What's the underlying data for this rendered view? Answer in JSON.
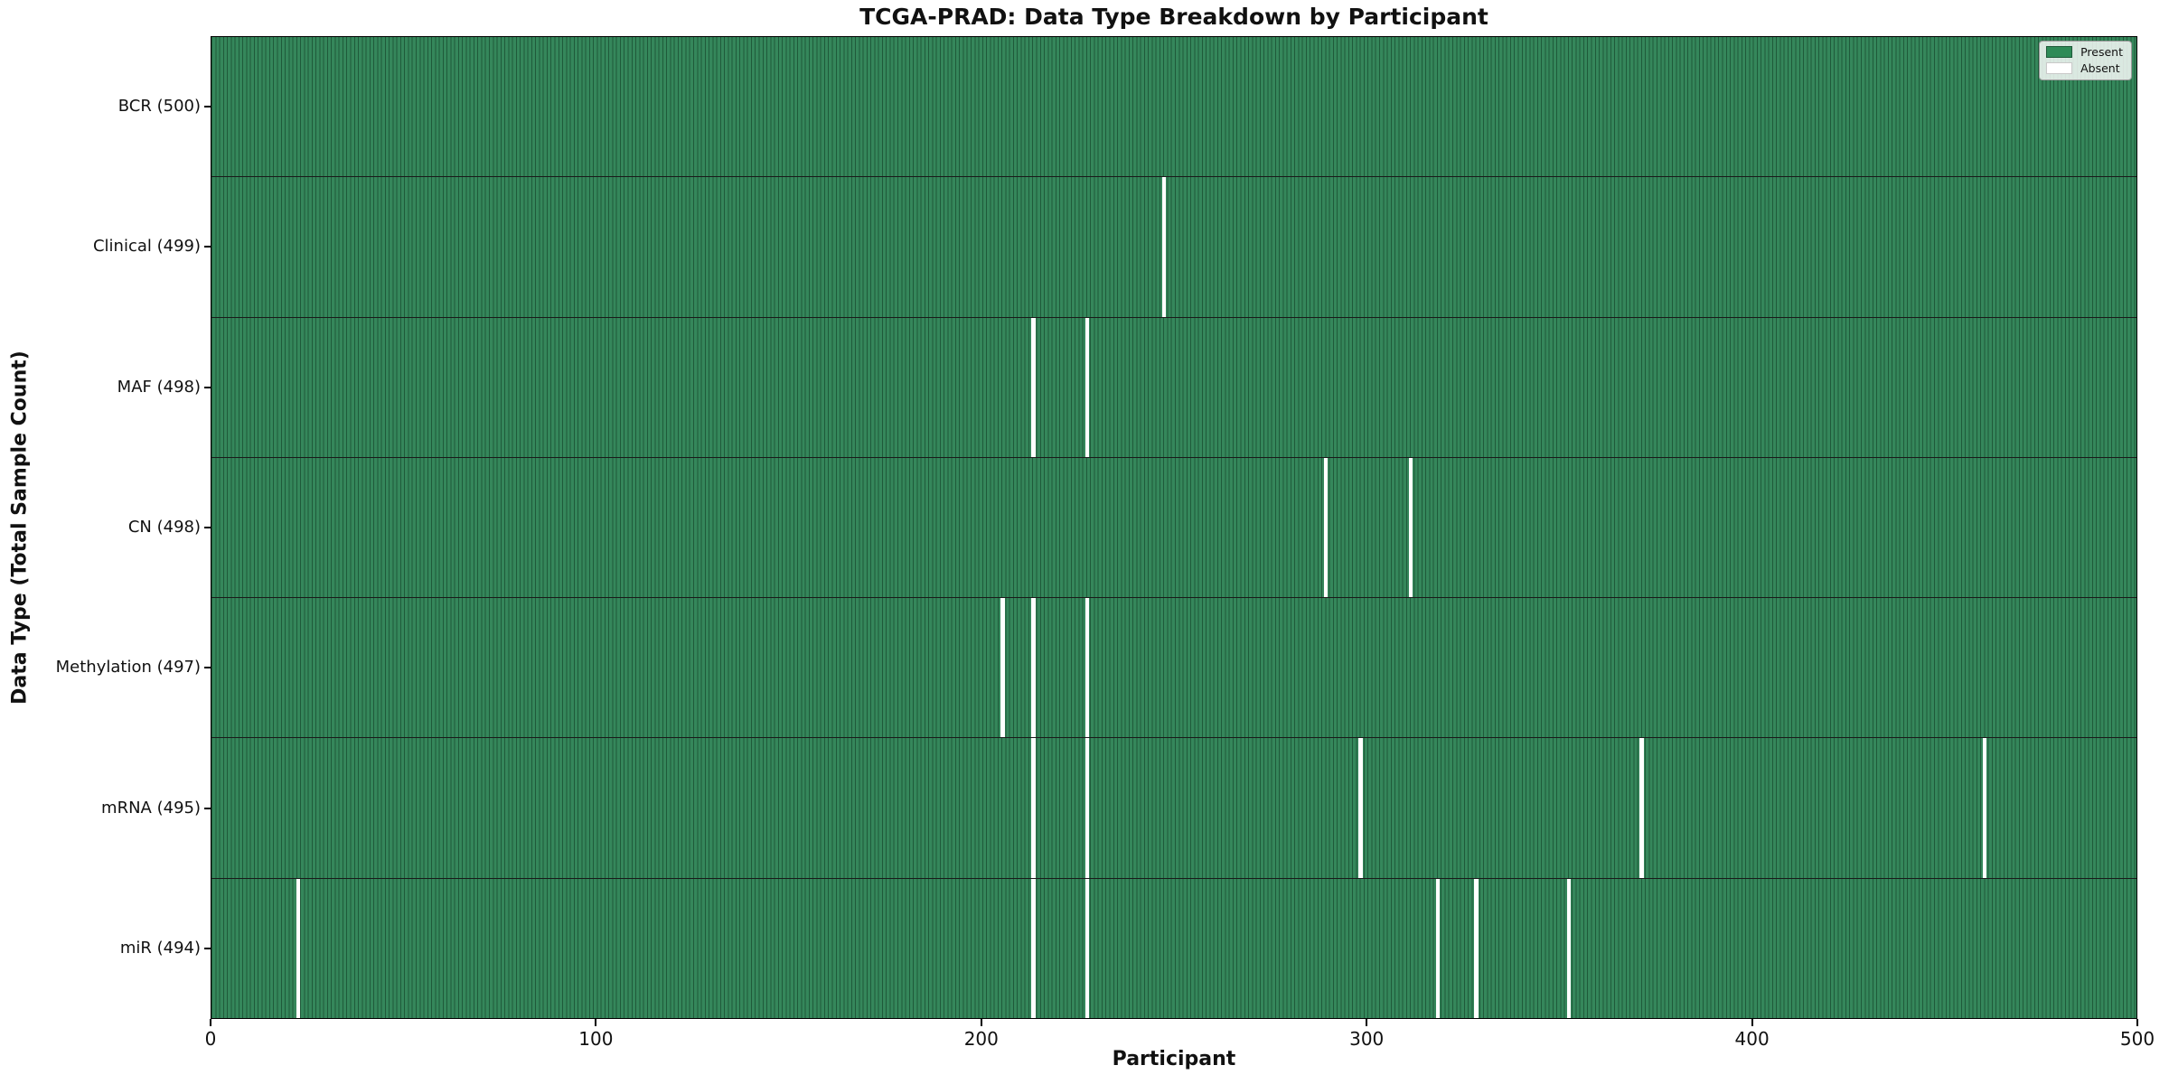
{
  "title": "TCGA-PRAD: Data Type Breakdown by Participant",
  "xlabel": "Participant",
  "ylabel": "Data Type (Total Sample Count)",
  "legend": {
    "present_label": "Present",
    "absent_label": "Absent"
  },
  "colors": {
    "present": "#2e8b57",
    "present_cell_edge": "#1f5a3a",
    "absent": "#ffffff",
    "row_divider": "#1a1a1a",
    "axis": "#000000"
  },
  "chart_data": {
    "type": "heatmap",
    "title": "TCGA-PRAD: Data Type Breakdown by Participant",
    "xlabel": "Participant",
    "ylabel": "Data Type (Total Sample Count)",
    "x_range": [
      0,
      500
    ],
    "x_ticks": [
      0,
      100,
      200,
      300,
      400,
      500
    ],
    "n_participants": 500,
    "legend_entries": [
      "Present",
      "Absent"
    ],
    "legend_position": "upper right",
    "grid": false,
    "rows": [
      {
        "label": "BCR (500)",
        "total": 500,
        "absent_participants": []
      },
      {
        "label": "Clinical (499)",
        "total": 499,
        "absent_participants": [
          247
        ]
      },
      {
        "label": "MAF (498)",
        "total": 498,
        "absent_participants": [
          213,
          227
        ]
      },
      {
        "label": "CN (498)",
        "total": 498,
        "absent_participants": [
          289,
          311
        ]
      },
      {
        "label": "Methylation (497)",
        "total": 497,
        "absent_participants": [
          205,
          213,
          227
        ]
      },
      {
        "label": "mRNA (495)",
        "total": 495,
        "absent_participants": [
          213,
          227,
          298,
          371,
          460
        ]
      },
      {
        "label": "miR (494)",
        "total": 494,
        "absent_participants": [
          22,
          213,
          227,
          318,
          328,
          352
        ]
      }
    ]
  }
}
